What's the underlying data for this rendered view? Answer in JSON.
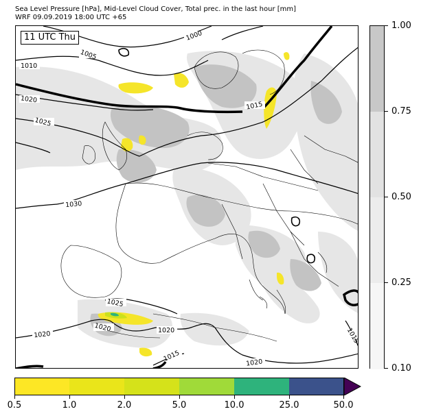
{
  "title": {
    "line1": "Sea Level Pressure [hPa], Mid-Level Cloud Cover, Total prec. in the last hour [mm]",
    "line2": "WRF 09.09.2019 18:00 UTC +65"
  },
  "time_badge": "11 UTC Thu",
  "contour_labels": [
    "1000",
    "1005",
    "1010",
    "1020",
    "1025",
    "1015",
    "1030",
    "1025",
    "1020",
    "1020",
    "1020",
    "1015",
    "1015",
    "1020"
  ],
  "cloud_colorbar": {
    "ticks": [
      "1.00",
      "0.75",
      "0.50",
      "0.25",
      "0.10"
    ],
    "colors": [
      "#c8c8c8",
      "#e2e2e2",
      "#ececec",
      "#f6f6f6"
    ]
  },
  "precip_colorbar": {
    "ticks": [
      "0.5",
      "1.0",
      "2.0",
      "5.0",
      "10.0",
      "25.0",
      "50.0"
    ],
    "colors": [
      "#fde725",
      "#eae51a",
      "#d5e21a",
      "#a0da39",
      "#2eb37c",
      "#3b528b",
      "#440154"
    ]
  },
  "colors": {
    "isobar": "#000000",
    "cloud_light": "#e6e6e6",
    "cloud_dark": "#c3c3c3",
    "precip_light": "#f5e52a",
    "precip_mid": "#cbe11e",
    "precip_heavy": "#2db27d",
    "border": "#000000"
  }
}
